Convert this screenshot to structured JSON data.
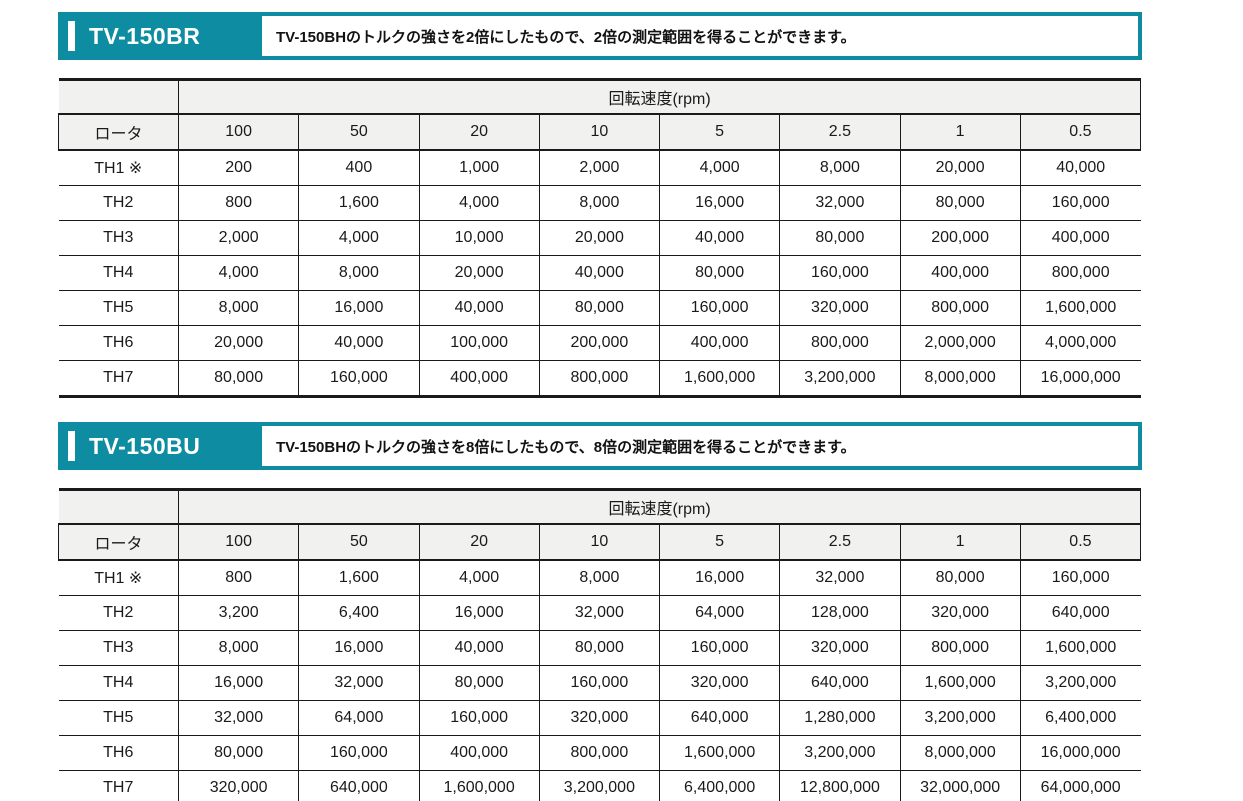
{
  "palette": {
    "teal": "#0e8da2",
    "highlight_strong": "#8dcfdc",
    "highlight_light": "#e2f0f3",
    "header_bg": "#f1f1ef",
    "border": "#1a1a1a"
  },
  "sections": [
    {
      "title": "TV-150BR",
      "description": "TV-150BHのトルクの強さを2倍にしたもので、2倍の測定範囲を得ることができます。",
      "table": {
        "group_header": "回転速度(rpm)",
        "row_header": "ロータ",
        "columns": [
          "100",
          "50",
          "20",
          "10",
          "5",
          "2.5",
          "1",
          "0.5"
        ],
        "rows": [
          {
            "label": "TH1 ※",
            "highlights": [
              "strong",
              "light"
            ],
            "values": [
              "200",
              "400",
              "1,000",
              "2,000",
              "4,000",
              "8,000",
              "20,000",
              "40,000"
            ]
          },
          {
            "label": "TH2",
            "highlights": [
              "light",
              "light"
            ],
            "values": [
              "800",
              "1,600",
              "4,000",
              "8,000",
              "16,000",
              "32,000",
              "80,000",
              "160,000"
            ]
          },
          {
            "label": "TH3",
            "highlights": [],
            "values": [
              "2,000",
              "4,000",
              "10,000",
              "20,000",
              "40,000",
              "80,000",
              "200,000",
              "400,000"
            ]
          },
          {
            "label": "TH4",
            "highlights": [],
            "values": [
              "4,000",
              "8,000",
              "20,000",
              "40,000",
              "80,000",
              "160,000",
              "400,000",
              "800,000"
            ]
          },
          {
            "label": "TH5",
            "highlights": [],
            "values": [
              "8,000",
              "16,000",
              "40,000",
              "80,000",
              "160,000",
              "320,000",
              "800,000",
              "1,600,000"
            ]
          },
          {
            "label": "TH6",
            "highlights": [],
            "values": [
              "20,000",
              "40,000",
              "100,000",
              "200,000",
              "400,000",
              "800,000",
              "2,000,000",
              "4,000,000"
            ]
          },
          {
            "label": "TH7",
            "highlights": [],
            "values": [
              "80,000",
              "160,000",
              "400,000",
              "800,000",
              "1,600,000",
              "3,200,000",
              "8,000,000",
              "16,000,000"
            ]
          }
        ]
      }
    },
    {
      "title": "TV-150BU",
      "description": "TV-150BHのトルクの強さを8倍にしたもので、8倍の測定範囲を得ることができます。",
      "table": {
        "group_header": "回転速度(rpm)",
        "row_header": "ロータ",
        "columns": [
          "100",
          "50",
          "20",
          "10",
          "5",
          "2.5",
          "1",
          "0.5"
        ],
        "rows": [
          {
            "label": "TH1 ※",
            "highlights": [
              "light",
              "light"
            ],
            "values": [
              "800",
              "1,600",
              "4,000",
              "8,000",
              "16,000",
              "32,000",
              "80,000",
              "160,000"
            ]
          },
          {
            "label": "TH2",
            "highlights": [
              "light"
            ],
            "values": [
              "3,200",
              "6,400",
              "16,000",
              "32,000",
              "64,000",
              "128,000",
              "320,000",
              "640,000"
            ]
          },
          {
            "label": "TH3",
            "highlights": [],
            "values": [
              "8,000",
              "16,000",
              "40,000",
              "80,000",
              "160,000",
              "320,000",
              "800,000",
              "1,600,000"
            ]
          },
          {
            "label": "TH4",
            "highlights": [],
            "values": [
              "16,000",
              "32,000",
              "80,000",
              "160,000",
              "320,000",
              "640,000",
              "1,600,000",
              "3,200,000"
            ]
          },
          {
            "label": "TH5",
            "highlights": [],
            "values": [
              "32,000",
              "64,000",
              "160,000",
              "320,000",
              "640,000",
              "1,280,000",
              "3,200,000",
              "6,400,000"
            ]
          },
          {
            "label": "TH6",
            "highlights": [],
            "values": [
              "80,000",
              "160,000",
              "400,000",
              "800,000",
              "1,600,000",
              "3,200,000",
              "8,000,000",
              "16,000,000"
            ]
          },
          {
            "label": "TH7",
            "highlights": [],
            "values": [
              "320,000",
              "640,000",
              "1,600,000",
              "3,200,000",
              "6,400,000",
              "12,800,000",
              "32,000,000",
              "64,000,000"
            ]
          }
        ]
      }
    }
  ]
}
